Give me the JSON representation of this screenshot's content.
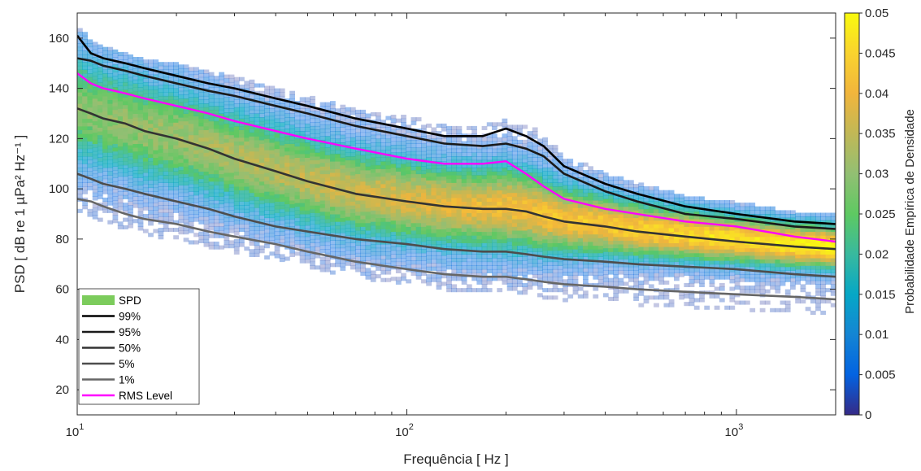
{
  "chart_data": {
    "type": "heatmap",
    "title": "",
    "xlabel": "Frequência [ Hz ]",
    "ylabel": "PSD [ dB re 1 µPa² Hz⁻¹ ]",
    "x_scale": "log",
    "xlim": [
      10,
      2000
    ],
    "ylim": [
      10,
      170
    ],
    "x_ticks": [
      10,
      100,
      1000
    ],
    "x_tick_labels": [
      {
        "base": "10",
        "exp": "1"
      },
      {
        "base": "10",
        "exp": "2"
      },
      {
        "base": "10",
        "exp": "3"
      }
    ],
    "y_ticks": [
      20,
      40,
      60,
      80,
      100,
      120,
      140,
      160
    ],
    "colorbar": {
      "label": "Probabilidade Empírica de Densidade",
      "range": [
        0,
        0.05
      ],
      "ticks": [
        0,
        0.005,
        0.01,
        0.015,
        0.02,
        0.025,
        0.03,
        0.035,
        0.04,
        0.045,
        0.05
      ],
      "colormap": "parula"
    },
    "legend": {
      "placement": "bottom-left",
      "entries": [
        {
          "label": "SPD",
          "color": "#7ccc5c",
          "kind": "patch"
        },
        {
          "label": "99%",
          "color": "#000000",
          "kind": "line"
        },
        {
          "label": "95%",
          "color": "#1a1a1a",
          "kind": "line"
        },
        {
          "label": "50%",
          "color": "#333333",
          "kind": "line"
        },
        {
          "label": "5%",
          "color": "#4d4d4d",
          "kind": "line"
        },
        {
          "label": "1%",
          "color": "#666666",
          "kind": "line"
        },
        {
          "label": "RMS Level",
          "color": "#ff00ff",
          "kind": "line"
        }
      ]
    },
    "x": [
      10,
      11,
      12,
      14,
      16,
      20,
      25,
      30,
      40,
      50,
      70,
      100,
      130,
      170,
      200,
      230,
      260,
      300,
      400,
      500,
      700,
      1000,
      1500,
      2000
    ],
    "series": [
      {
        "name": "99%",
        "color": "#000000",
        "values": [
          161,
          154,
          152,
          150,
          148,
          145,
          142,
          140,
          136,
          133,
          128,
          124,
          121,
          121,
          124,
          121,
          117,
          109,
          102,
          98,
          93,
          90,
          87,
          86
        ]
      },
      {
        "name": "95%",
        "color": "#1a1a1a",
        "values": [
          152,
          151,
          149,
          147,
          145,
          142,
          139,
          137,
          133,
          130,
          125,
          121,
          118,
          117,
          118,
          116,
          113,
          106,
          99,
          95,
          90,
          88,
          85,
          84
        ]
      },
      {
        "name": "RMS Level",
        "color": "#ff00ff",
        "values": [
          146,
          142,
          140,
          138,
          136,
          133,
          130,
          127,
          123,
          120,
          116,
          112,
          110,
          110,
          111,
          106,
          101,
          96,
          92,
          90,
          87,
          85,
          81,
          79
        ]
      },
      {
        "name": "50%",
        "color": "#333333",
        "values": [
          132,
          130,
          128,
          126,
          123,
          120,
          116,
          112,
          107,
          103,
          98,
          95,
          93,
          92,
          92,
          91,
          89,
          87,
          85,
          83,
          81,
          79,
          77,
          76
        ]
      },
      {
        "name": "5%",
        "color": "#4d4d4d",
        "values": [
          106,
          104,
          102,
          100,
          98,
          95,
          92,
          89,
          85,
          83,
          80,
          78,
          76,
          75,
          75,
          74,
          73,
          72,
          71,
          70,
          69,
          68,
          66,
          65
        ]
      },
      {
        "name": "1%",
        "color": "#666666",
        "values": [
          96,
          95,
          93,
          90,
          88,
          86,
          83,
          81,
          78,
          75,
          71,
          68,
          66,
          65,
          65,
          64,
          63,
          62,
          61,
          60,
          59,
          58,
          57,
          56
        ]
      }
    ]
  }
}
